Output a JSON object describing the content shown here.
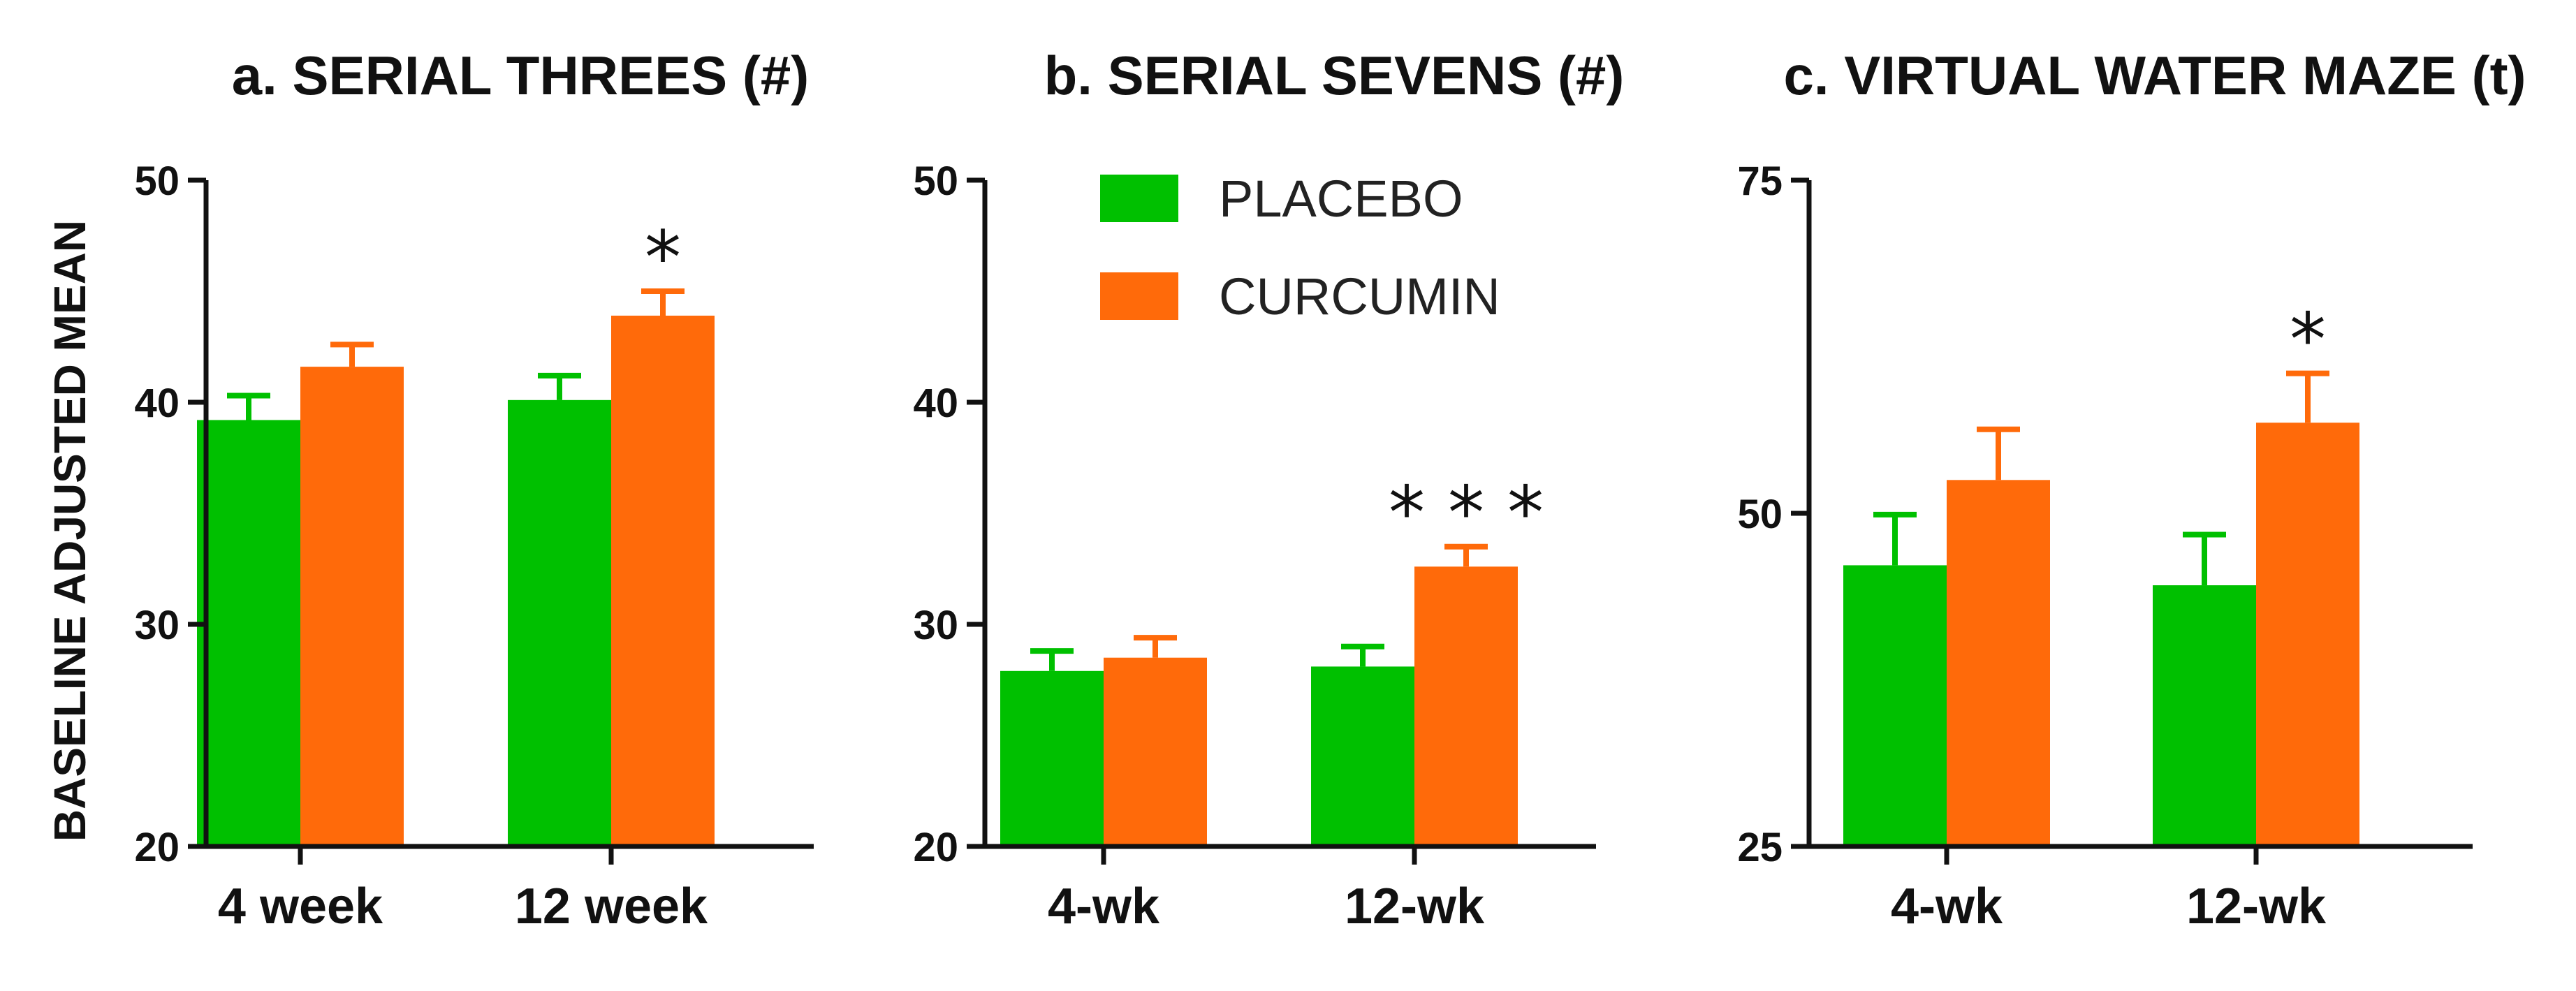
{
  "figure": {
    "ylabel": "BASELINE ADJUSTED MEAN"
  },
  "colors": {
    "placebo": "#00c000",
    "curcumin": "#ff6a0a"
  },
  "legend": {
    "entries": [
      {
        "label": "PLACEBO",
        "series": "placebo"
      },
      {
        "label": "CURCUMIN",
        "series": "curcumin"
      }
    ]
  },
  "chart_data": [
    {
      "type": "bar",
      "title": "a. SERIAL THREES (#)",
      "categories": [
        "4 week",
        "12 week"
      ],
      "ylim": [
        20,
        50
      ],
      "yticks": [
        20,
        30,
        40,
        50
      ],
      "series": [
        {
          "name": "PLACEBO",
          "key": "placebo",
          "values": [
            39.2,
            40.1
          ],
          "errors": [
            1.1,
            1.1
          ]
        },
        {
          "name": "CURCUMIN",
          "key": "curcumin",
          "values": [
            41.6,
            43.9
          ],
          "errors": [
            1.0,
            1.1
          ]
        }
      ],
      "annotations": [
        {
          "category": 1,
          "text": "*"
        }
      ]
    },
    {
      "type": "bar",
      "title": "b. SERIAL SEVENS (#)",
      "categories": [
        "4-wk",
        "12-wk"
      ],
      "ylim": [
        20,
        50
      ],
      "yticks": [
        20,
        30,
        40,
        50
      ],
      "series": [
        {
          "name": "PLACEBO",
          "key": "placebo",
          "values": [
            27.9,
            28.1
          ],
          "errors": [
            0.9,
            0.9
          ]
        },
        {
          "name": "CURCUMIN",
          "key": "curcumin",
          "values": [
            28.5,
            32.6
          ],
          "errors": [
            0.9,
            0.9
          ]
        }
      ],
      "annotations": [
        {
          "category": 1,
          "text": "* * *"
        }
      ]
    },
    {
      "type": "bar",
      "title": "c. VIRTUAL WATER MAZE (t)",
      "categories": [
        "4-wk",
        "12-wk"
      ],
      "ylim": [
        25,
        75
      ],
      "yticks": [
        25,
        50,
        75
      ],
      "series": [
        {
          "name": "PLACEBO",
          "key": "placebo",
          "values": [
            46.1,
            44.6
          ],
          "errors": [
            3.8,
            3.8
          ]
        },
        {
          "name": "CURCUMIN",
          "key": "curcumin",
          "values": [
            52.5,
            56.8
          ],
          "errors": [
            3.8,
            3.7
          ]
        }
      ],
      "annotations": [
        {
          "category": 1,
          "text": "*"
        }
      ]
    }
  ]
}
